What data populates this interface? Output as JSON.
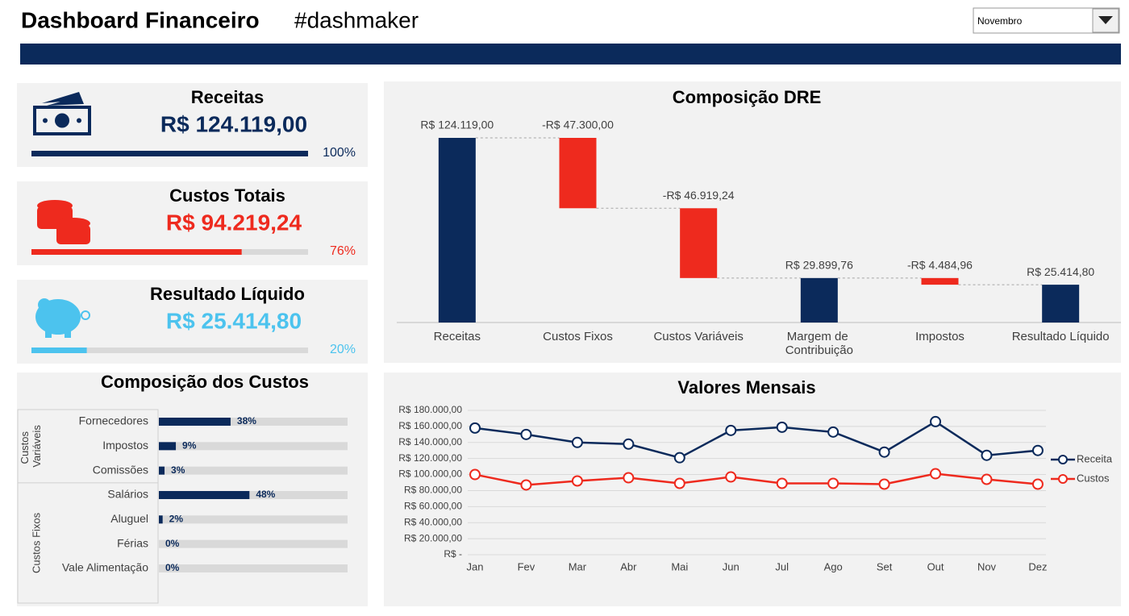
{
  "header": {
    "title": "Dashboard Financeiro",
    "tag": "#dashmaker",
    "month": "Novembro"
  },
  "kpis": [
    {
      "title": "Receitas",
      "value": "R$ 124.119,00",
      "percent": 100,
      "percent_label": "100%",
      "color": "#0b2a5b"
    },
    {
      "title": "Custos Totais",
      "value": "R$ 94.219,24",
      "percent": 76,
      "percent_label": "76%",
      "color": "#ee2a1e"
    },
    {
      "title": "Resultado Líquido",
      "value": "R$ 25.414,80",
      "percent": 20,
      "percent_label": "20%",
      "color": "#4cc3ee"
    }
  ],
  "chart_data": [
    {
      "type": "waterfall",
      "title": "Composição DRE",
      "categories": [
        "Receitas",
        "Custos Fixos",
        "Custos Variáveis",
        "Margem de Contribuição",
        "Impostos",
        "Resultado Líquido"
      ],
      "values": [
        124119,
        -47300,
        -46919.24,
        29899.76,
        -4484.96,
        25414.8
      ],
      "value_labels": [
        "R$ 124.119,00",
        "-R$ 47.300,00",
        "-R$ 46.919,24",
        "R$ 29.899,76",
        "-R$ 4.484,96",
        "R$ 25.414,80"
      ],
      "totals": [
        true,
        false,
        false,
        true,
        false,
        true
      ],
      "colors": {
        "total": "#0b2a5b",
        "decrease": "#ee2a1e"
      }
    },
    {
      "type": "hbar",
      "title": "Composição dos Custos",
      "categories": [
        "Fornecedores",
        "Impostos",
        "Comissões",
        "Salários",
        "Aluguel",
        "Férias",
        "Vale Alimentação"
      ],
      "values": [
        38,
        9,
        3,
        48,
        2,
        0,
        0
      ],
      "value_labels": [
        "38%",
        "9%",
        "3%",
        "48%",
        "2%",
        "0%",
        "0%"
      ],
      "groups": [
        {
          "name": "Custos Variáveis",
          "size": 3
        },
        {
          "name": "Custos Fixos",
          "size": 4
        }
      ],
      "xlim": [
        0,
        100
      ],
      "color": "#0b2a5b",
      "track_color": "#d9d9d9"
    },
    {
      "type": "line",
      "title": "Valores Mensais",
      "categories": [
        "Jan",
        "Fev",
        "Mar",
        "Abr",
        "Mai",
        "Jun",
        "Jul",
        "Ago",
        "Set",
        "Out",
        "Nov",
        "Dez"
      ],
      "series": [
        {
          "name": "Receita",
          "color": "#0b2a5b",
          "values": [
            158000,
            150000,
            140000,
            138000,
            121000,
            155000,
            159000,
            153000,
            128000,
            166000,
            124000,
            130000
          ]
        },
        {
          "name": "Custos",
          "color": "#ee2a1e",
          "values": [
            100000,
            87000,
            92000,
            96000,
            89000,
            97000,
            89000,
            89000,
            88000,
            101000,
            94000,
            88000
          ]
        }
      ],
      "ylim": [
        0,
        180000
      ],
      "yticks": [
        {
          "value": 0,
          "label": "R$ -"
        },
        {
          "value": 20000,
          "label": "R$ 20.000,00"
        },
        {
          "value": 40000,
          "label": "R$ 40.000,00"
        },
        {
          "value": 60000,
          "label": "R$ 60.000,00"
        },
        {
          "value": 80000,
          "label": "R$ 80.000,00"
        },
        {
          "value": 100000,
          "label": "R$ 100.000,00"
        },
        {
          "value": 120000,
          "label": "R$ 120.000,00"
        },
        {
          "value": 140000,
          "label": "R$ 140.000,00"
        },
        {
          "value": 160000,
          "label": "R$ 160.000,00"
        },
        {
          "value": 180000,
          "label": "R$ 180.000,00"
        }
      ],
      "grid": true,
      "legend": "right"
    }
  ]
}
